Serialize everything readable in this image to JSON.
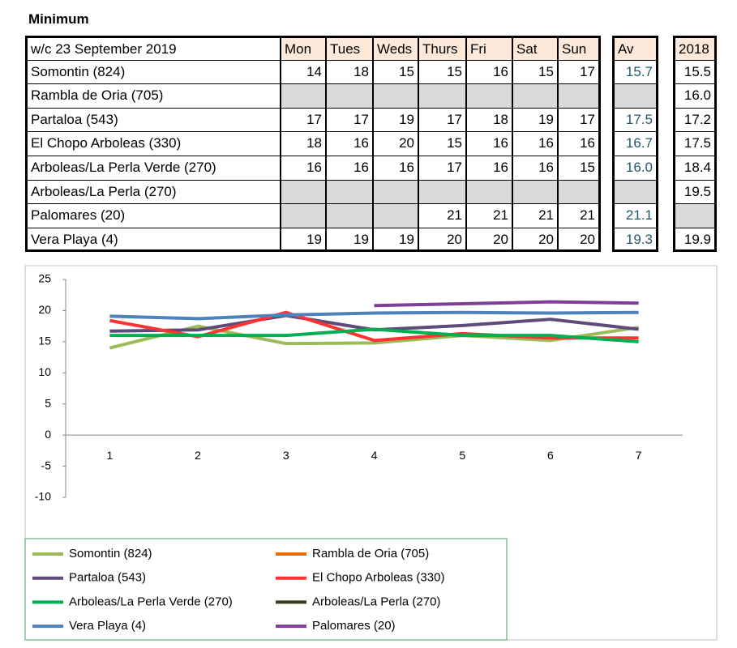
{
  "heading": "Minimum",
  "table": {
    "header": [
      "w/c 23 September 2019",
      "Mon",
      "Tues",
      "Weds",
      "Thurs",
      "Fri",
      "Sat",
      "Sun",
      "Av",
      "2018"
    ],
    "rows": [
      [
        "Somontin (824)",
        "14",
        "18",
        "15",
        "15",
        "16",
        "15",
        "17",
        "15.7",
        "15.5"
      ],
      [
        "Rambla de Oria (705)",
        null,
        null,
        null,
        null,
        null,
        null,
        null,
        null,
        "16.0"
      ],
      [
        "Partaloa (543)",
        "17",
        "17",
        "19",
        "17",
        "18",
        "19",
        "17",
        "17.5",
        "17.2"
      ],
      [
        "El Chopo Arboleas (330)",
        "18",
        "16",
        "20",
        "15",
        "16",
        "16",
        "16",
        "16.7",
        "17.5"
      ],
      [
        "Arboleas/La Perla Verde (270)",
        "16",
        "16",
        "16",
        "17",
        "16",
        "16",
        "15",
        "16.0",
        "18.4"
      ],
      [
        "Arboleas/La Perla (270)",
        null,
        null,
        null,
        null,
        null,
        null,
        null,
        null,
        "19.5"
      ],
      [
        "Palomares (20)",
        null,
        null,
        null,
        "21",
        "21",
        "21",
        "21",
        "21.1",
        null
      ],
      [
        "Vera Playa (4)",
        "19",
        "19",
        "19",
        "20",
        "20",
        "20",
        "20",
        "19.3",
        "19.9"
      ]
    ]
  },
  "chart_data": {
    "type": "line",
    "categories": [
      1,
      2,
      3,
      4,
      5,
      6,
      7
    ],
    "series": [
      {
        "name": "Somontin (824)",
        "color": "#9bbb59",
        "values": [
          14,
          17.5,
          14.7,
          14.8,
          16,
          15.2,
          17.3
        ]
      },
      {
        "name": "Rambla de Oria (705)",
        "color": "#e46c0a",
        "values": [
          null,
          null,
          null,
          null,
          null,
          null,
          null
        ]
      },
      {
        "name": "Partaloa (543)",
        "color": "#604a7b",
        "values": [
          16.7,
          16.9,
          19.2,
          16.9,
          17.6,
          18.6,
          17
        ]
      },
      {
        "name": "El Chopo Arboleas (330)",
        "color": "#ff3333",
        "values": [
          18.4,
          15.8,
          19.7,
          15.2,
          16.3,
          15.6,
          15.6
        ]
      },
      {
        "name": "Arboleas/La Perla Verde (270)",
        "color": "#00b050",
        "values": [
          16,
          16,
          16,
          17,
          16,
          16,
          15
        ]
      },
      {
        "name": "Arboleas/La Perla (270)",
        "color": "#3b3b1f",
        "values": [
          null,
          null,
          null,
          null,
          null,
          null,
          null
        ]
      },
      {
        "name": "Vera Playa (4)",
        "color": "#4f81bd",
        "values": [
          19.1,
          18.7,
          19.3,
          19.6,
          19.7,
          19.6,
          19.7
        ]
      },
      {
        "name": "Palomares (20)",
        "color": "#7f3f98",
        "values": [
          null,
          null,
          null,
          20.8,
          21.1,
          21.4,
          21.2
        ]
      }
    ],
    "ylim": [
      -10,
      25
    ],
    "yticks": [
      -10,
      -5,
      0,
      5,
      10,
      15,
      20,
      25
    ],
    "grid": false
  }
}
